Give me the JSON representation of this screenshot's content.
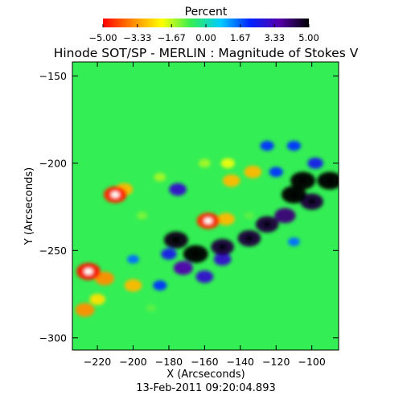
{
  "chart_data": {
    "type": "heatmap",
    "title": "Hinode SOT/SP - MERLIN : Magnitude of Stokes V",
    "subtitle": "13-Feb-2011 09:20:04.893",
    "xlabel": "X (Arcseconds)",
    "ylabel": "Y (Arcseconds)",
    "xlim": [
      -234,
      -85
    ],
    "ylim": [
      -307,
      -142
    ],
    "x_ticks": [
      -220,
      -200,
      -180,
      -160,
      -140,
      -120,
      -100
    ],
    "y_ticks": [
      -150,
      -200,
      -250,
      -300
    ],
    "x_tick_labels": [
      "−220",
      "−200",
      "−180",
      "−160",
      "−140",
      "−120",
      "−100"
    ],
    "y_tick_labels": [
      "−150",
      "−200",
      "−250",
      "−300"
    ],
    "colorbar": {
      "title": "Percent",
      "range": [
        -5.0,
        5.0
      ],
      "ticks": [
        -5.0,
        -3.33,
        -1.67,
        0.0,
        1.67,
        3.33,
        5.0
      ],
      "tick_labels": [
        "−5.00",
        "−3.33",
        "−1.67",
        "0.00",
        "1.67",
        "3.33",
        "5.00"
      ],
      "colors": [
        "#ff0000",
        "#ff8800",
        "#ffff00",
        "#33ee55",
        "#00ccff",
        "#0022ff",
        "#5500aa",
        "#000000"
      ]
    },
    "background_value": 0.0,
    "features": [
      {
        "x": -210,
        "y": -218,
        "value": -4.6
      },
      {
        "x": -205,
        "y": -215,
        "value": -3.0
      },
      {
        "x": -158,
        "y": -233,
        "value": -4.5
      },
      {
        "x": -148,
        "y": -232,
        "value": -3.0
      },
      {
        "x": -225,
        "y": -262,
        "value": -4.8
      },
      {
        "x": -216,
        "y": -266,
        "value": -3.5
      },
      {
        "x": -200,
        "y": -270,
        "value": -3.0
      },
      {
        "x": -220,
        "y": -278,
        "value": -2.5
      },
      {
        "x": -227,
        "y": -284,
        "value": -3.5
      },
      {
        "x": -145,
        "y": -210,
        "value": -3.0
      },
      {
        "x": -133,
        "y": -205,
        "value": -3.0
      },
      {
        "x": -147,
        "y": -200,
        "value": -2.0
      },
      {
        "x": -160,
        "y": -200,
        "value": -1.5
      },
      {
        "x": -185,
        "y": -208,
        "value": -1.5
      },
      {
        "x": -195,
        "y": -230,
        "value": -1.2
      },
      {
        "x": -135,
        "y": -230,
        "value": -1.0
      },
      {
        "x": -190,
        "y": -283,
        "value": -1.0
      },
      {
        "x": -176,
        "y": -244,
        "value": 4.8
      },
      {
        "x": -165,
        "y": -252,
        "value": 5.0
      },
      {
        "x": -150,
        "y": -248,
        "value": 4.5
      },
      {
        "x": -135,
        "y": -243,
        "value": 4.5
      },
      {
        "x": -125,
        "y": -235,
        "value": 4.5
      },
      {
        "x": -110,
        "y": -218,
        "value": 5.0
      },
      {
        "x": -105,
        "y": -210,
        "value": 5.0
      },
      {
        "x": -100,
        "y": -222,
        "value": 4.5
      },
      {
        "x": -90,
        "y": -210,
        "value": 5.0
      },
      {
        "x": -115,
        "y": -230,
        "value": 4.0
      },
      {
        "x": -172,
        "y": -260,
        "value": 3.5
      },
      {
        "x": -150,
        "y": -255,
        "value": 3.0
      },
      {
        "x": -160,
        "y": -265,
        "value": 3.0
      },
      {
        "x": -180,
        "y": -252,
        "value": 2.5
      },
      {
        "x": -185,
        "y": -270,
        "value": 2.0
      },
      {
        "x": -200,
        "y": -255,
        "value": 1.5
      },
      {
        "x": -175,
        "y": -215,
        "value": 3.0
      },
      {
        "x": -125,
        "y": -190,
        "value": 2.0
      },
      {
        "x": -110,
        "y": -190,
        "value": 2.0
      },
      {
        "x": -98,
        "y": -200,
        "value": 2.5
      },
      {
        "x": -110,
        "y": -245,
        "value": 1.5
      },
      {
        "x": -120,
        "y": -205,
        "value": 2.0
      }
    ]
  }
}
